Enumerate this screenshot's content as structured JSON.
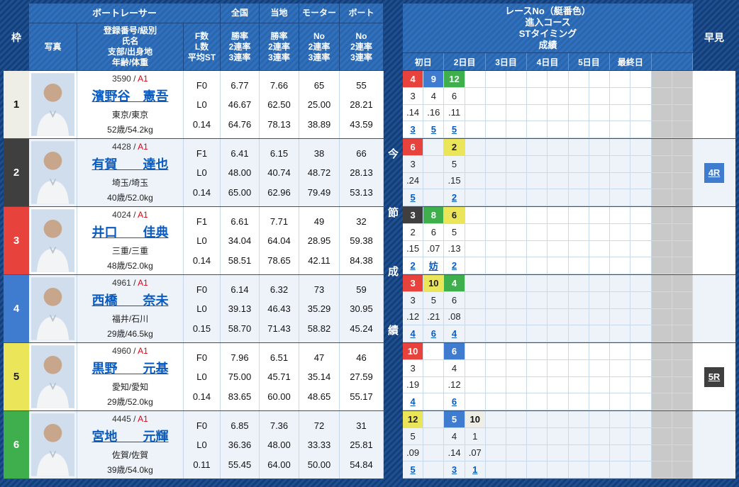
{
  "colors": {
    "page_navy": "#163E76",
    "header_blue": "#2E6CB8",
    "row_white": "#FFFFFF",
    "row_alt": "#EEF3FA",
    "grid_line": "#C8D9EC",
    "row_divider": "#1D5A96",
    "disabled_column": "#C9C9C9",
    "link_blue": "#0A5BBF",
    "grade_red": "#E60012",
    "lanes": {
      "1": {
        "bg": "#EFEEE6",
        "fg": "#111111"
      },
      "2": {
        "bg": "#3F3F3F",
        "fg": "#FFFFFF"
      },
      "3": {
        "bg": "#E8423C",
        "fg": "#FFFFFF"
      },
      "4": {
        "bg": "#3F7CD0",
        "fg": "#FFFFFF"
      },
      "5": {
        "bg": "#EBE55A",
        "fg": "#222222"
      },
      "6": {
        "bg": "#3FAE4D",
        "fg": "#FFFFFF"
      }
    }
  },
  "header": {
    "waku": "枠",
    "boat_racer": "ボートレーサー",
    "photo": "写真",
    "racer_info_lines": [
      "登録番号/級別",
      "氏名",
      "支部/出身地",
      "年齢/体重"
    ],
    "fl_lines": [
      "F数",
      "L数",
      "平均ST"
    ],
    "columns": [
      {
        "top": "全国",
        "sub": [
          "勝率",
          "2連率",
          "3連率"
        ]
      },
      {
        "top": "当地",
        "sub": [
          "勝率",
          "2連率",
          "3連率"
        ]
      },
      {
        "top": "モーター",
        "sub": [
          "No",
          "2連率",
          "3連率"
        ]
      },
      {
        "top": "ボート",
        "sub": [
          "No",
          "2連率",
          "3連率"
        ]
      }
    ],
    "results_title_lines": [
      "レースNo（艇番色）",
      "進入コース",
      "STタイミング",
      "成績"
    ],
    "day_labels": [
      "初日",
      "2日目",
      "3日目",
      "4日目",
      "5日目",
      "最終日",
      ""
    ],
    "series_label": "今節成績",
    "hayami": "早見"
  },
  "racers": [
    {
      "waku": 1,
      "reg_no": "3590",
      "grade": "A1",
      "name": "濱野谷　憲吾",
      "branch_origin": "東京/東京",
      "age_weight": "52歳/54.2kg",
      "f_count": "F0",
      "l_count": "L0",
      "avg_st": "0.14",
      "national": [
        "6.77",
        "46.67",
        "64.76"
      ],
      "local": [
        "7.66",
        "62.50",
        "78.13"
      ],
      "motor": [
        "65",
        "25.00",
        "38.89"
      ],
      "boat": [
        "55",
        "28.21",
        "43.59"
      ],
      "series": [
        {
          "col": 1,
          "race": "4",
          "lane": 3,
          "course": "3",
          "st": ".14",
          "result": "3"
        },
        {
          "col": 2,
          "race": "9",
          "lane": 4,
          "course": "4",
          "st": ".16",
          "result": "5"
        },
        {
          "col": 3,
          "race": "12",
          "lane": 6,
          "course": "6",
          "st": ".11",
          "result": "5"
        }
      ],
      "hayami": null
    },
    {
      "waku": 2,
      "reg_no": "4428",
      "grade": "A1",
      "name": "有賀　　達也",
      "branch_origin": "埼玉/埼玉",
      "age_weight": "40歳/52.0kg",
      "f_count": "F1",
      "l_count": "L0",
      "avg_st": "0.14",
      "national": [
        "6.41",
        "48.00",
        "65.00"
      ],
      "local": [
        "6.15",
        "40.74",
        "62.96"
      ],
      "motor": [
        "38",
        "48.72",
        "79.49"
      ],
      "boat": [
        "66",
        "28.13",
        "53.13"
      ],
      "series": [
        {
          "col": 1,
          "race": "6",
          "lane": 3,
          "course": "3",
          "st": ".24",
          "result": "5"
        },
        {
          "col": 3,
          "race": "2",
          "lane": 5,
          "course": "5",
          "st": ".15",
          "result": "2"
        }
      ],
      "hayami": {
        "label": "4R",
        "lane": 4
      }
    },
    {
      "waku": 3,
      "reg_no": "4024",
      "grade": "A1",
      "name": "井口　　佳典",
      "branch_origin": "三重/三重",
      "age_weight": "48歳/52.0kg",
      "f_count": "F1",
      "l_count": "L0",
      "avg_st": "0.14",
      "national": [
        "6.61",
        "34.04",
        "58.51"
      ],
      "local": [
        "7.71",
        "64.04",
        "78.65"
      ],
      "motor": [
        "49",
        "28.95",
        "42.11"
      ],
      "boat": [
        "32",
        "59.38",
        "84.38"
      ],
      "series": [
        {
          "col": 1,
          "race": "3",
          "lane": 2,
          "course": "2",
          "st": ".15",
          "result": "2"
        },
        {
          "col": 2,
          "race": "8",
          "lane": 6,
          "course": "6",
          "st": ".07",
          "result": "妨"
        },
        {
          "col": 3,
          "race": "6",
          "lane": 5,
          "course": "5",
          "st": ".13",
          "result": "2"
        }
      ],
      "hayami": null
    },
    {
      "waku": 4,
      "reg_no": "4961",
      "grade": "A1",
      "name": "西橋　　奈未",
      "branch_origin": "福井/石川",
      "age_weight": "29歳/46.5kg",
      "f_count": "F0",
      "l_count": "L0",
      "avg_st": "0.15",
      "national": [
        "6.14",
        "39.13",
        "58.70"
      ],
      "local": [
        "6.32",
        "46.43",
        "71.43"
      ],
      "motor": [
        "73",
        "35.29",
        "58.82"
      ],
      "boat": [
        "59",
        "30.95",
        "45.24"
      ],
      "series": [
        {
          "col": 1,
          "race": "3",
          "lane": 3,
          "course": "3",
          "st": ".12",
          "result": "4"
        },
        {
          "col": 2,
          "race": "10",
          "lane": 5,
          "course": "5",
          "st": ".21",
          "result": "6"
        },
        {
          "col": 3,
          "race": "4",
          "lane": 6,
          "course": "6",
          "st": ".08",
          "result": "4"
        }
      ],
      "hayami": null
    },
    {
      "waku": 5,
      "reg_no": "4960",
      "grade": "A1",
      "name": "黒野　　元基",
      "branch_origin": "愛知/愛知",
      "age_weight": "29歳/52.0kg",
      "f_count": "F0",
      "l_count": "L0",
      "avg_st": "0.14",
      "national": [
        "7.96",
        "75.00",
        "83.65"
      ],
      "local": [
        "6.51",
        "45.71",
        "60.00"
      ],
      "motor": [
        "47",
        "35.14",
        "48.65"
      ],
      "boat": [
        "46",
        "27.59",
        "55.17"
      ],
      "series": [
        {
          "col": 1,
          "race": "10",
          "lane": 3,
          "course": "3",
          "st": ".19",
          "result": "4"
        },
        {
          "col": 3,
          "race": "6",
          "lane": 4,
          "course": "4",
          "st": ".12",
          "result": "6"
        }
      ],
      "hayami": {
        "label": "5R",
        "lane": 2
      }
    },
    {
      "waku": 6,
      "reg_no": "4445",
      "grade": "A1",
      "name": "宮地　　元輝",
      "branch_origin": "佐賀/佐賀",
      "age_weight": "39歳/54.0kg",
      "f_count": "F0",
      "l_count": "L0",
      "avg_st": "0.11",
      "national": [
        "6.85",
        "36.36",
        "55.45"
      ],
      "local": [
        "7.36",
        "48.00",
        "64.00"
      ],
      "motor": [
        "72",
        "33.33",
        "50.00"
      ],
      "boat": [
        "31",
        "25.81",
        "54.84"
      ],
      "series": [
        {
          "col": 1,
          "race": "12",
          "lane": 5,
          "course": "5",
          "st": ".09",
          "result": "5"
        },
        {
          "col": 3,
          "race": "5",
          "lane": 4,
          "course": "4",
          "st": ".14",
          "result": "3"
        },
        {
          "col": 4,
          "race": "10",
          "lane": 1,
          "course": "1",
          "st": ".07",
          "result": "1"
        }
      ],
      "hayami": null
    }
  ]
}
